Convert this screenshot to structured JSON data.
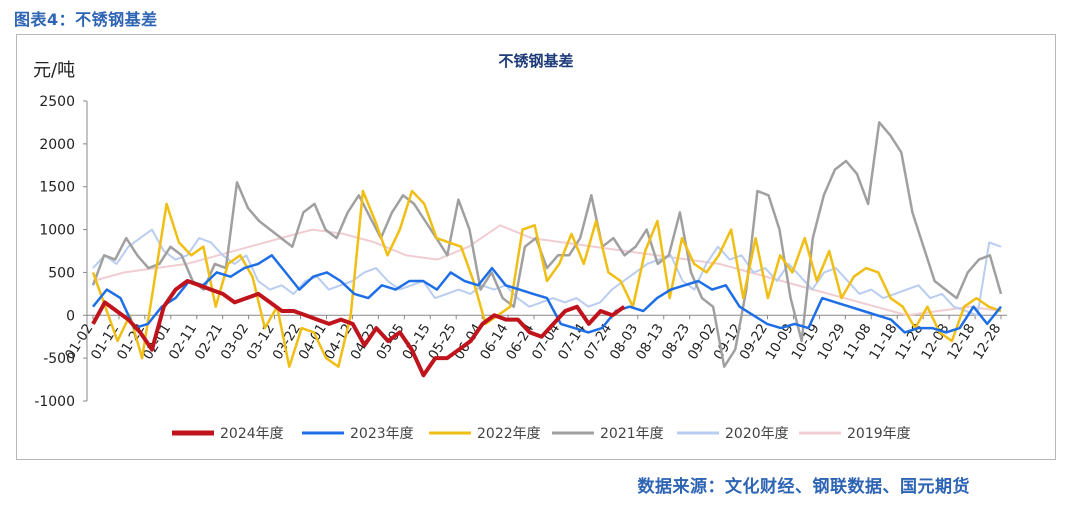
{
  "figure_caption": "图表4：不锈钢基差",
  "source_note": "数据来源：文化财经、钢联数据、国元期货",
  "chart_data": {
    "type": "line",
    "title": "不锈钢基差",
    "ylabel": "元/吨",
    "xlabel": "",
    "ylim": [
      -1000,
      2500
    ],
    "yticks": [
      -1000,
      -500,
      0,
      500,
      1000,
      1500,
      2000,
      2500
    ],
    "xticks": [
      "01-02",
      "01-12",
      "01-22",
      "02-01",
      "02-11",
      "02-21",
      "03-02",
      "03-12",
      "03-22",
      "04-01",
      "04-12",
      "04-22",
      "05-05",
      "05-15",
      "05-25",
      "06-04",
      "06-14",
      "06-24",
      "07-04",
      "07-14",
      "07-24",
      "08-03",
      "08-13",
      "08-23",
      "09-02",
      "09-12",
      "09-22",
      "10-09",
      "10-19",
      "10-29",
      "11-08",
      "11-18",
      "11-28",
      "12-08",
      "12-18",
      "12-28"
    ],
    "legend_position": "bottom",
    "grid": false,
    "series": [
      {
        "name": "2024年度",
        "color": "#c0141c",
        "width": 4,
        "values": [
          -100,
          150,
          50,
          -50,
          -200,
          -400,
          100,
          300,
          400,
          350,
          300,
          250,
          150,
          200,
          250,
          150,
          50,
          50,
          0,
          -50,
          -100,
          -50,
          -100,
          -350,
          -150,
          -300,
          -200,
          -400,
          -700,
          -500,
          -500,
          -400,
          -300,
          -100,
          0,
          -50,
          -50,
          -200,
          -250,
          -100,
          50,
          100,
          -100,
          50,
          0,
          100
        ]
      },
      {
        "name": "2023年度",
        "color": "#1e6ee6",
        "width": 2.5,
        "values": [
          100,
          300,
          200,
          -150,
          -100,
          100,
          200,
          400,
          350,
          500,
          450,
          550,
          600,
          700,
          500,
          300,
          450,
          500,
          400,
          250,
          200,
          350,
          300,
          400,
          400,
          300,
          500,
          400,
          350,
          550,
          350,
          300,
          250,
          200,
          -100,
          -150,
          -200,
          -150,
          50,
          100,
          50,
          200,
          300,
          350,
          400,
          300,
          350,
          100,
          0,
          -100,
          -150,
          -100,
          -150,
          200,
          150,
          100,
          50,
          0,
          -50,
          -200,
          -150,
          -150,
          -200,
          -150,
          100,
          -100,
          100
        ]
      },
      {
        "name": "2022年度",
        "color": "#f0be14",
        "width": 2.5,
        "values": [
          500,
          100,
          -300,
          0,
          -500,
          400,
          1300,
          850,
          700,
          800,
          100,
          600,
          700,
          450,
          -150,
          100,
          -600,
          -150,
          -200,
          -500,
          -600,
          0,
          1450,
          1100,
          700,
          1000,
          1450,
          1300,
          900,
          850,
          800,
          400,
          -100,
          0,
          100,
          1000,
          1050,
          400,
          600,
          950,
          600,
          1100,
          500,
          400,
          100,
          750,
          1100,
          200,
          900,
          600,
          500,
          700,
          1000,
          200,
          900,
          200,
          700,
          500,
          900,
          400,
          750,
          200,
          450,
          550,
          500,
          200,
          100,
          -150,
          100,
          -200,
          -300,
          100,
          200,
          100,
          50
        ]
      },
      {
        "name": "2021年度",
        "color": "#a0a0a0",
        "width": 2.5,
        "values": [
          350,
          700,
          650,
          900,
          700,
          550,
          600,
          800,
          700,
          400,
          300,
          600,
          550,
          1550,
          1250,
          1100,
          1000,
          900,
          800,
          1200,
          1300,
          1000,
          900,
          1200,
          1400,
          1150,
          900,
          1200,
          1400,
          1300,
          1100,
          900,
          700,
          1350,
          1000,
          300,
          500,
          200,
          100,
          800,
          900,
          550,
          700,
          700,
          900,
          1400,
          800,
          900,
          700,
          800,
          1000,
          600,
          700,
          1200,
          500,
          200,
          100,
          -600,
          -400,
          300,
          1450,
          1400,
          1000,
          200,
          -300,
          900,
          1400,
          1700,
          1800,
          1650,
          1300,
          2250,
          2100,
          1900,
          1200,
          800,
          400,
          300,
          200,
          500,
          650,
          700,
          250
        ]
      },
      {
        "name": "2020年度",
        "color": "#b9cdf0",
        "width": 2,
        "values": [
          550,
          700,
          600,
          800,
          900,
          1000,
          750,
          650,
          700,
          900,
          850,
          700,
          600,
          700,
          400,
          300,
          350,
          250,
          400,
          450,
          300,
          350,
          400,
          500,
          550,
          400,
          300,
          350,
          400,
          200,
          250,
          300,
          250,
          350,
          300,
          350,
          200,
          100,
          150,
          200,
          150,
          200,
          100,
          150,
          300,
          400,
          500,
          600,
          650,
          700,
          400,
          300,
          600,
          800,
          650,
          700,
          500,
          550,
          400,
          600,
          450,
          300,
          500,
          550,
          400,
          250,
          300,
          200,
          250,
          300,
          350,
          200,
          250,
          100,
          50,
          0,
          850,
          800
        ]
      },
      {
        "name": "2019年度",
        "color": "#f0cdd2",
        "width": 2,
        "values": [
          400,
          500,
          550,
          600,
          700,
          800,
          900,
          1000,
          950,
          850,
          700,
          650,
          800,
          1050,
          900,
          850,
          800,
          750,
          700,
          650,
          600,
          500,
          400,
          300,
          200,
          100,
          0,
          50,
          100,
          50
        ]
      }
    ]
  }
}
